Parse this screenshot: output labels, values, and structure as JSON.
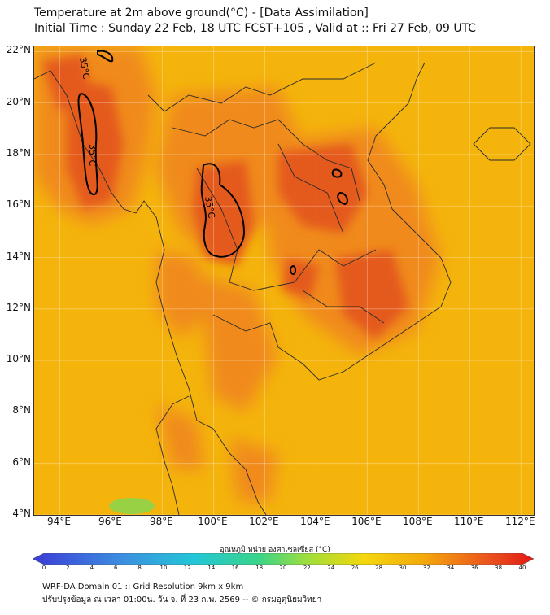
{
  "header": {
    "title_line1": "Temperature at 2m above ground(°C) - [Data Assimilation]",
    "title_line2": "Initial Time : Sunday 22 Feb, 18 UTC FCST+105 , Valid at :: Fri 27 Feb, 09 UTC"
  },
  "map": {
    "lat_labels": [
      "22°N",
      "20°N",
      "18°N",
      "16°N",
      "14°N",
      "12°N",
      "10°N",
      "8°N",
      "6°N",
      "4°N"
    ],
    "lon_labels": [
      "94°E",
      "96°E",
      "98°E",
      "100°E",
      "102°E",
      "104°E",
      "106°E",
      "108°E",
      "110°E",
      "112°E"
    ],
    "extent": {
      "lon_min": 93,
      "lon_max": 112.5,
      "lat_min": 4,
      "lat_max": 22.2
    },
    "contour_label": "35°C",
    "colors": {
      "base": "#f4b40c",
      "warm": "#f08418",
      "hot": "#e45a1c",
      "coast": "#2a2a2a",
      "contour": "#000000"
    }
  },
  "colorbar": {
    "title": "อุณหภูมิ หน่วย องศาเซลเซียส (°C)",
    "ticks": [
      "0",
      "2",
      "4",
      "6",
      "8",
      "10",
      "12",
      "14",
      "16",
      "18",
      "20",
      "22",
      "24",
      "26",
      "28",
      "30",
      "32",
      "34",
      "36",
      "38",
      "40"
    ],
    "range": [
      0,
      40
    ]
  },
  "footer": {
    "line1": "WRF-DA Domain 01 :: Grid Resolution 9km x 9km",
    "line2": "ปรับปรุงข้อมูล ณ เวลา 01:00น. วัน จ. ที่ 23 ก.พ. 2569 -- © กรมอุตุนิยมวิทยา"
  }
}
